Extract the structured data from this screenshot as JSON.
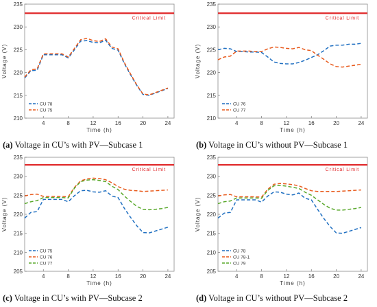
{
  "captions": [
    {
      "letter": "(a)",
      "text": " Voltage in CU’s with PV—Subcase 1"
    },
    {
      "letter": "(b)",
      "text": " Voltage in CU’s without PV—Subcase 1"
    },
    {
      "letter": "(c)",
      "text": " Voltage in CU’s with PV—Subcase 2"
    },
    {
      "letter": "(d)",
      "text": " Voltage in CU’s without PV—Subcase 2"
    }
  ],
  "colors": {
    "limit": "#e0282a",
    "blue": "#1f6fc1",
    "orange": "#e85a1c",
    "green": "#58a82a"
  },
  "chart_data": [
    {
      "type": "line",
      "xlabel": "Time (h)",
      "ylabel": "Voltage (V)",
      "xlim": [
        1,
        25
      ],
      "ylim": [
        210,
        235
      ],
      "xticks": [
        4,
        8,
        12,
        16,
        20,
        24
      ],
      "yticks": [
        210,
        215,
        220,
        225,
        230,
        235
      ],
      "critical_limit": {
        "label": "Critical Limit",
        "value": 233
      },
      "legend": "bottom-left",
      "x": [
        1,
        2,
        3,
        4,
        5,
        6,
        7,
        8,
        9,
        10,
        11,
        12,
        13,
        14,
        15,
        16,
        17,
        18,
        19,
        20,
        21,
        22,
        23,
        24
      ],
      "series": [
        {
          "name": "CU 78",
          "color": "blue",
          "values": [
            218.8,
            220.4,
            220.5,
            223.9,
            223.9,
            223.9,
            223.9,
            223.2,
            225.0,
            226.9,
            227.0,
            226.6,
            226.5,
            227.1,
            225.3,
            224.9,
            222.0,
            219.5,
            217.2,
            215.2,
            215.0,
            215.5,
            216.0,
            216.5
          ]
        },
        {
          "name": "CU 75",
          "color": "orange",
          "values": [
            219.0,
            220.6,
            220.8,
            224.1,
            224.1,
            224.1,
            224.1,
            223.4,
            225.3,
            227.2,
            227.5,
            227.0,
            226.8,
            227.4,
            225.6,
            225.2,
            222.2,
            219.7,
            217.3,
            215.3,
            215.1,
            215.6,
            216.1,
            216.6
          ]
        }
      ]
    },
    {
      "type": "line",
      "xlabel": "Time (h)",
      "ylabel": "Voltage (V)",
      "xlim": [
        1,
        25
      ],
      "ylim": [
        210,
        235
      ],
      "xticks": [
        4,
        8,
        12,
        16,
        20,
        24
      ],
      "yticks": [
        210,
        215,
        220,
        225,
        230,
        235
      ],
      "critical_limit": {
        "label": "Critical Limit",
        "value": 233
      },
      "legend": "bottom-left",
      "x": [
        1,
        2,
        3,
        4,
        5,
        6,
        7,
        8,
        9,
        10,
        11,
        12,
        13,
        14,
        15,
        16,
        17,
        18,
        19,
        20,
        21,
        22,
        23,
        24
      ],
      "series": [
        {
          "name": "CU 76",
          "color": "blue",
          "values": [
            225.0,
            225.3,
            225.2,
            224.6,
            224.6,
            224.5,
            224.5,
            224.4,
            223.4,
            222.3,
            222.0,
            221.9,
            221.9,
            222.2,
            222.7,
            223.3,
            223.9,
            224.8,
            225.8,
            226.0,
            226.0,
            226.2,
            226.2,
            226.4
          ]
        },
        {
          "name": "CU 77",
          "color": "orange",
          "values": [
            222.8,
            223.4,
            223.6,
            224.7,
            224.7,
            224.7,
            224.6,
            224.6,
            225.2,
            225.6,
            225.5,
            225.3,
            225.2,
            225.5,
            225.0,
            224.8,
            223.8,
            222.9,
            221.9,
            221.3,
            221.2,
            221.4,
            221.6,
            221.8
          ]
        }
      ]
    },
    {
      "type": "line",
      "xlabel": "Time (h)",
      "ylabel": "Voltage (V)",
      "xlim": [
        1,
        25
      ],
      "ylim": [
        205,
        235
      ],
      "xticks": [
        4,
        8,
        12,
        16,
        20,
        24
      ],
      "yticks": [
        205,
        210,
        215,
        220,
        225,
        230,
        235
      ],
      "critical_limit": {
        "label": "Critical Limit",
        "value": 233
      },
      "legend": "bottom-left",
      "x": [
        1,
        2,
        3,
        4,
        5,
        6,
        7,
        8,
        9,
        10,
        11,
        12,
        13,
        14,
        15,
        16,
        17,
        18,
        19,
        20,
        21,
        22,
        23,
        24
      ],
      "series": [
        {
          "name": "CU 75",
          "color": "blue",
          "values": [
            219.0,
            220.5,
            220.7,
            223.9,
            223.9,
            223.9,
            223.9,
            223.3,
            224.9,
            226.2,
            226.3,
            225.9,
            225.8,
            226.2,
            224.8,
            224.4,
            221.6,
            219.2,
            217.0,
            215.2,
            215.1,
            215.6,
            216.1,
            216.6
          ]
        },
        {
          "name": "CU 76",
          "color": "orange",
          "values": [
            224.8,
            225.2,
            225.3,
            224.7,
            224.7,
            224.7,
            224.7,
            224.6,
            227.1,
            228.8,
            229.3,
            229.5,
            229.4,
            229.1,
            228.3,
            227.3,
            226.6,
            226.3,
            226.2,
            226.0,
            226.1,
            226.2,
            226.3,
            226.4
          ]
        },
        {
          "name": "CU 77",
          "color": "green",
          "values": [
            222.8,
            223.3,
            223.6,
            224.4,
            224.4,
            224.4,
            224.4,
            224.3,
            226.9,
            228.6,
            229.0,
            229.1,
            228.9,
            228.6,
            227.4,
            226.5,
            224.8,
            223.4,
            222.1,
            221.3,
            221.2,
            221.3,
            221.5,
            221.8
          ]
        }
      ]
    },
    {
      "type": "line",
      "xlabel": "Time (h)",
      "ylabel": "Voltage (V)",
      "xlim": [
        1,
        25
      ],
      "ylim": [
        205,
        235
      ],
      "xticks": [
        4,
        8,
        12,
        16,
        20,
        24
      ],
      "yticks": [
        205,
        210,
        215,
        220,
        225,
        230,
        235
      ],
      "critical_limit": {
        "label": "Critical Limit",
        "value": 233
      },
      "legend": "bottom-left",
      "x": [
        1,
        2,
        3,
        4,
        5,
        6,
        7,
        8,
        9,
        10,
        11,
        12,
        13,
        14,
        15,
        16,
        17,
        18,
        19,
        20,
        21,
        22,
        23,
        24
      ],
      "series": [
        {
          "name": "CU 78",
          "color": "blue",
          "values": [
            219.0,
            220.3,
            220.5,
            223.8,
            223.8,
            223.8,
            223.8,
            223.2,
            224.8,
            225.9,
            225.8,
            225.3,
            225.1,
            225.6,
            224.2,
            223.8,
            221.3,
            218.9,
            216.8,
            215.1,
            215.0,
            215.5,
            216.0,
            216.5
          ]
        },
        {
          "name": "CU 78-1",
          "color": "orange",
          "values": [
            224.8,
            225.1,
            225.2,
            224.6,
            224.6,
            224.6,
            224.6,
            224.5,
            226.6,
            227.9,
            228.1,
            228.0,
            227.8,
            227.5,
            226.8,
            226.2,
            226.0,
            226.0,
            226.0,
            226.0,
            226.1,
            226.2,
            226.3,
            226.4
          ]
        },
        {
          "name": "CU 79",
          "color": "green",
          "values": [
            222.8,
            223.3,
            223.5,
            224.3,
            224.3,
            224.3,
            224.3,
            224.2,
            226.3,
            227.5,
            227.6,
            227.4,
            227.1,
            226.8,
            225.8,
            225.0,
            223.8,
            222.6,
            221.6,
            221.1,
            221.1,
            221.3,
            221.5,
            221.8
          ]
        }
      ]
    }
  ]
}
